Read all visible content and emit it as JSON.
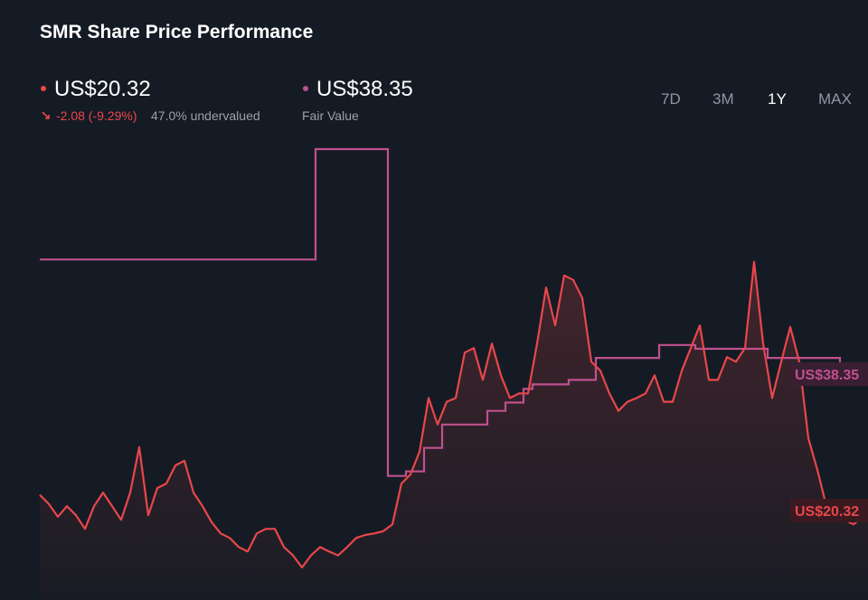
{
  "header": {
    "title": "SMR Share Price Performance",
    "price": "US$20.32",
    "change": "-2.08 (-9.29%)",
    "valuation": "47.0% undervalued",
    "fair_value": "US$38.35",
    "fair_value_label": "Fair Value"
  },
  "ranges": [
    "7D",
    "3M",
    "1Y",
    "MAX"
  ],
  "selected_range": "1Y",
  "chart_data": {
    "type": "line",
    "series": [
      {
        "color": "#e8474b",
        "values": [
          22.4,
          21.2,
          19.5,
          20.9,
          19.7,
          17.9,
          20.9,
          22.7,
          20.9,
          19.1,
          22.7,
          28.7,
          19.7,
          23.3,
          23.9,
          26.3,
          26.9,
          22.7,
          20.9,
          18.8,
          17.3,
          16.7,
          15.5,
          14.9,
          17.3,
          17.9,
          17.9,
          15.5,
          14.4,
          12.8,
          14.4,
          15.5,
          14.9,
          14.4,
          15.5,
          16.7,
          17.1,
          17.3,
          17.6,
          18.5,
          23.9,
          25.1,
          28.1,
          35.2,
          31.7,
          34.7,
          35.2,
          41.2,
          41.8,
          37.6,
          42.4,
          38.2,
          35.2,
          35.8,
          35.8,
          42.4,
          49.8,
          44.8,
          51.4,
          50.8,
          48.4,
          40.0,
          38.8,
          35.8,
          33.5,
          34.7,
          35.2,
          35.8,
          38.2,
          34.7,
          34.7,
          38.8,
          41.8,
          44.8,
          37.6,
          37.6,
          40.6,
          40.0,
          41.8,
          53.2,
          42.4,
          35.2,
          40.0,
          44.6,
          40.0,
          29.9,
          25.7,
          20.9,
          19.1,
          19.1,
          18.5,
          19.5,
          20.3
        ]
      },
      {
        "name": "Fair Value",
        "color": "#c0508f",
        "values": [
          53.5,
          53.5,
          53.5,
          53.5,
          53.5,
          53.5,
          53.5,
          53.5,
          53.5,
          53.5,
          53.5,
          53.5,
          53.5,
          53.5,
          53.5,
          53.5,
          53.5,
          53.5,
          53.5,
          53.5,
          53.5,
          53.5,
          53.5,
          53.5,
          53.5,
          53.5,
          53.5,
          53.5,
          53.5,
          53.5,
          53.5,
          68.1,
          68.1,
          68.1,
          68.1,
          68.1,
          68.1,
          68.1,
          68.1,
          24.9,
          24.9,
          25.5,
          25.5,
          28.6,
          28.6,
          31.7,
          31.7,
          31.7,
          31.7,
          31.7,
          33.5,
          33.5,
          34.6,
          34.6,
          36.4,
          37.0,
          37.0,
          37.0,
          37.0,
          37.6,
          37.6,
          37.6,
          40.5,
          40.5,
          40.5,
          40.5,
          40.5,
          40.5,
          40.5,
          42.2,
          42.2,
          42.2,
          42.2,
          41.7,
          41.7,
          41.7,
          41.7,
          41.7,
          41.7,
          41.7,
          41.7,
          40.5,
          40.5,
          40.5,
          40.5,
          40.5,
          40.5,
          40.5,
          40.5,
          38.35,
          38.35,
          38.35,
          38.35
        ]
      }
    ]
  }
}
